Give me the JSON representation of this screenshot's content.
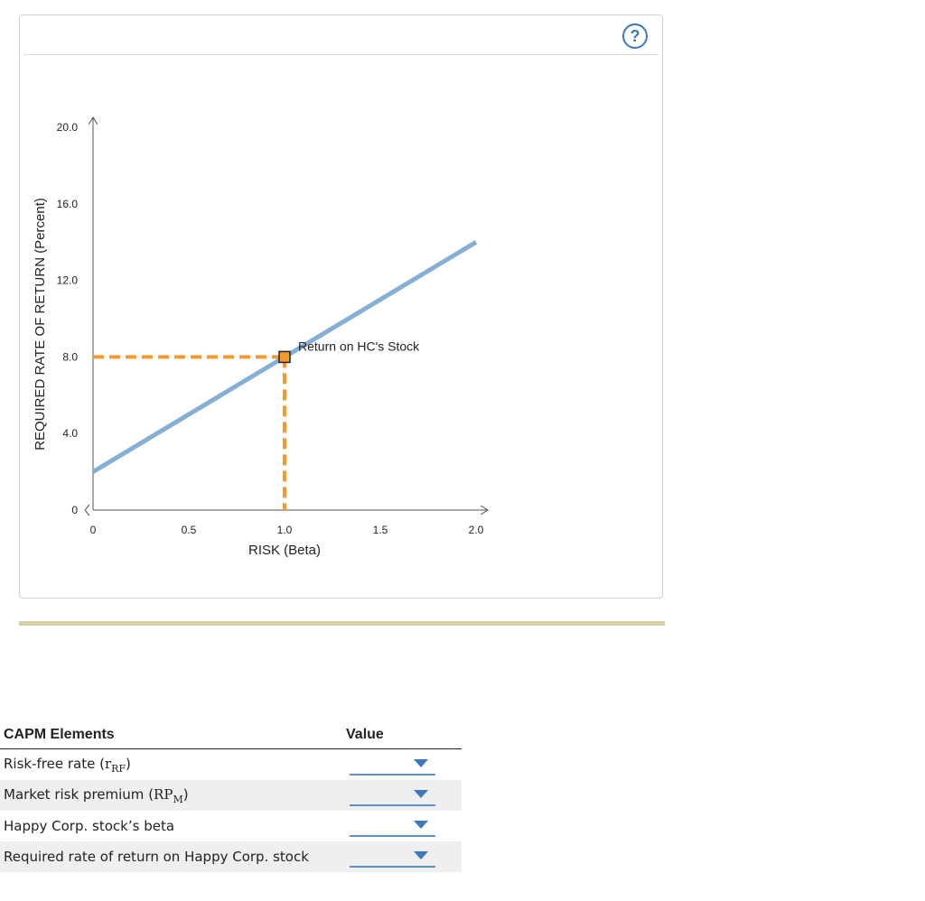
{
  "help": {
    "glyph": "?"
  },
  "chart_data": {
    "type": "line",
    "xlabel": "RISK (Beta)",
    "ylabel": "REQUIRED RATE OF RETURN (Percent)",
    "xlim": [
      0,
      2.0
    ],
    "ylim": [
      0,
      20.0
    ],
    "x_ticks": [
      "0",
      "0.5",
      "1.0",
      "1.5",
      "2.0"
    ],
    "y_ticks": [
      "0",
      "4.0",
      "8.0",
      "12.0",
      "16.0",
      "20.0"
    ],
    "series": [
      {
        "x": [
          0,
          2.0
        ],
        "y": [
          2.0,
          14.0
        ],
        "color": "#85afd4"
      }
    ],
    "point": {
      "x": 1.0,
      "y": 8.0,
      "label": "Return on HC's Stock",
      "fill": "#f59a2a",
      "stroke": "#222222"
    },
    "guide_color": "#f59a2a",
    "grid": false
  },
  "table": {
    "header_element": "CAPM Elements",
    "header_value": "Value",
    "rows": [
      {
        "label": "Risk-free rate (",
        "sym_main": "r",
        "sym_sub": "RF",
        "label_end": ")"
      },
      {
        "label": "Market risk premium (",
        "sym_main": "RP",
        "sym_sub": "M",
        "label_end": ")"
      },
      {
        "label": "Happy Corp. stock’s beta"
      },
      {
        "label": "Required rate of return on Happy Corp. stock"
      }
    ]
  }
}
